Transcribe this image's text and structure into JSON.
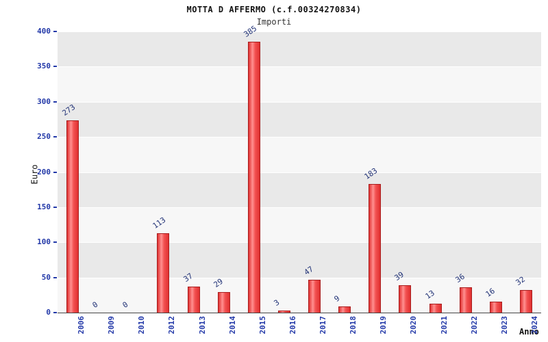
{
  "colors": {
    "bar_main": "#e03131",
    "bar_light": "#ff9090",
    "bar_mid": "#f25050",
    "bar_border": "#a81d1d",
    "tick_label": "#2238a8",
    "value_label": "#223377",
    "band_dark": "#e9e9e9",
    "band_light": "#f7f7f7",
    "grid": "#ffffff",
    "axis": "#444444"
  },
  "chart_data": {
    "type": "bar",
    "title": "MOTTA D AFFERMO (c.f.00324270834)",
    "subtitle": "Importi",
    "xlabel": "Anno",
    "ylabel": "Euro",
    "ylim": [
      0,
      400
    ],
    "ytick_step": 50,
    "grid": true,
    "legend": "none",
    "categories": [
      "2006",
      "2009",
      "2010",
      "2012",
      "2013",
      "2014",
      "2015",
      "2016",
      "2017",
      "2018",
      "2019",
      "2020",
      "2021",
      "2022",
      "2023",
      "2024"
    ],
    "values": [
      273,
      0,
      0,
      113,
      37,
      29,
      385,
      3,
      47,
      9,
      183,
      39,
      13,
      36,
      16,
      32
    ]
  }
}
